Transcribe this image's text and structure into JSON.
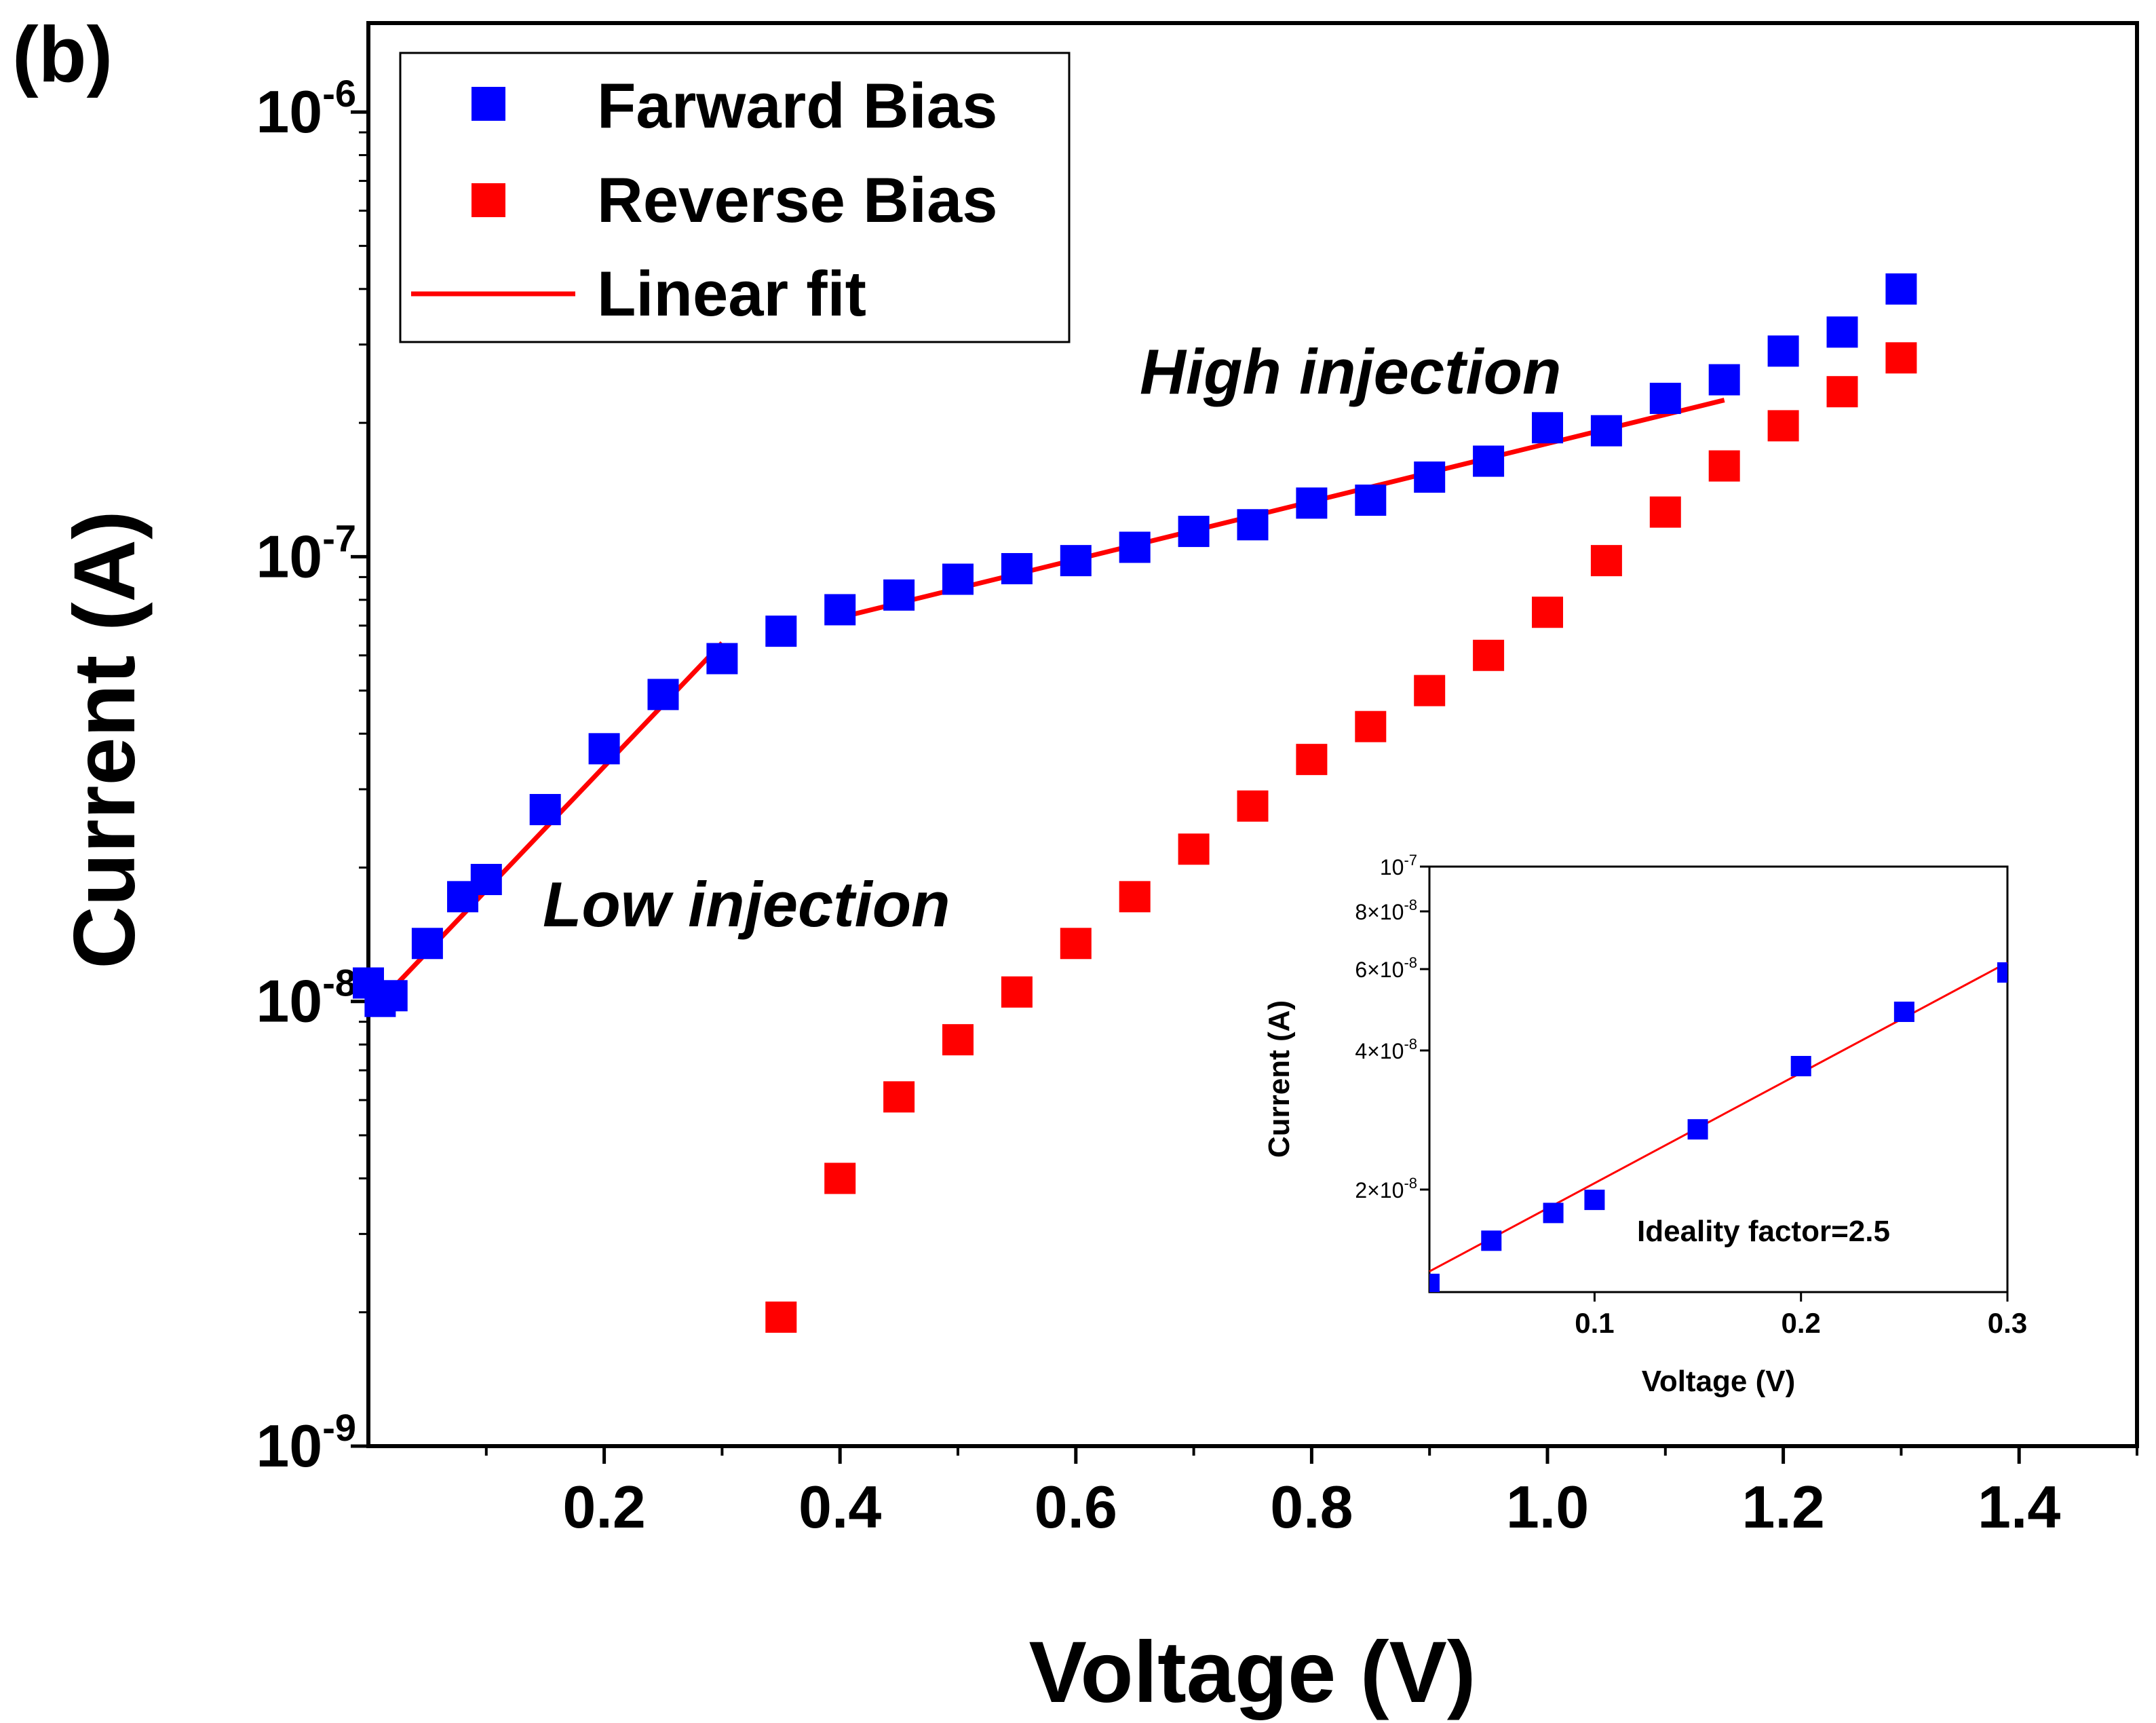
{
  "chart_data": {
    "panel_label": "(b)",
    "type": "scatter",
    "xlabel": "Voltage (V)",
    "ylabel": "Current (A)",
    "xlim": [
      0,
      1.5
    ],
    "ylim_log10": [
      -9,
      -5.8
    ],
    "yscale": "log",
    "xticks": [
      {
        "v": 0.2,
        "label": "0.2"
      },
      {
        "v": 0.4,
        "label": "0.4"
      },
      {
        "v": 0.6,
        "label": "0.6"
      },
      {
        "v": 0.8,
        "label": "0.8"
      },
      {
        "v": 1.0,
        "label": "1.0"
      },
      {
        "v": 1.2,
        "label": "1.2"
      },
      {
        "v": 1.4,
        "label": "1.4"
      }
    ],
    "yticks": [
      {
        "e": -9,
        "base": "10",
        "exp": "-9"
      },
      {
        "e": -8,
        "base": "10",
        "exp": "-8"
      },
      {
        "e": -7,
        "base": "10",
        "exp": "-7"
      },
      {
        "e": -6,
        "base": "10",
        "exp": "-6"
      }
    ],
    "legend": {
      "placement": "top-left",
      "entries": [
        {
          "label": "Farward Bias",
          "kind": "square",
          "color": "#0000ff"
        },
        {
          "label": "Reverse Bias",
          "kind": "square",
          "color": "#ff0000"
        },
        {
          "label": "Linear fit",
          "kind": "line",
          "color": "#ff0000"
        }
      ]
    },
    "series": [
      {
        "name": "Farward Bias",
        "color": "#0000ff",
        "points": [
          [
            0.0,
            1.1e-08
          ],
          [
            0.01,
            1e-08
          ],
          [
            0.02,
            1.03e-08
          ],
          [
            0.05,
            1.35e-08
          ],
          [
            0.08,
            1.72e-08
          ],
          [
            0.1,
            1.88e-08
          ],
          [
            0.15,
            2.7e-08
          ],
          [
            0.2,
            3.7e-08
          ],
          [
            0.25,
            4.9e-08
          ],
          [
            0.3,
            5.9e-08
          ],
          [
            0.35,
            6.8e-08
          ],
          [
            0.4,
            7.6e-08
          ],
          [
            0.45,
            8.2e-08
          ],
          [
            0.5,
            8.9e-08
          ],
          [
            0.55,
            9.4e-08
          ],
          [
            0.6,
            9.8e-08
          ],
          [
            0.65,
            1.05e-07
          ],
          [
            0.7,
            1.14e-07
          ],
          [
            0.75,
            1.18e-07
          ],
          [
            0.8,
            1.32e-07
          ],
          [
            0.85,
            1.34e-07
          ],
          [
            0.9,
            1.51e-07
          ],
          [
            0.95,
            1.64e-07
          ],
          [
            1.0,
            1.95e-07
          ],
          [
            1.05,
            1.92e-07
          ],
          [
            1.1,
            2.27e-07
          ],
          [
            1.15,
            2.5e-07
          ],
          [
            1.2,
            2.9e-07
          ],
          [
            1.25,
            3.2e-07
          ],
          [
            1.3,
            4e-07
          ]
        ]
      },
      {
        "name": "Reverse Bias",
        "color": "#ff0000",
        "points": [
          [
            0.35,
            1.95e-09
          ],
          [
            0.4,
            4e-09
          ],
          [
            0.45,
            6.1e-09
          ],
          [
            0.5,
            8.2e-09
          ],
          [
            0.55,
            1.05e-08
          ],
          [
            0.6,
            1.35e-08
          ],
          [
            0.65,
            1.72e-08
          ],
          [
            0.7,
            2.2e-08
          ],
          [
            0.75,
            2.75e-08
          ],
          [
            0.8,
            3.5e-08
          ],
          [
            0.85,
            4.15e-08
          ],
          [
            0.9,
            5e-08
          ],
          [
            0.95,
            6e-08
          ],
          [
            1.0,
            7.5e-08
          ],
          [
            1.05,
            9.8e-08
          ],
          [
            1.1,
            1.26e-07
          ],
          [
            1.15,
            1.6e-07
          ],
          [
            1.2,
            1.97e-07
          ],
          [
            1.25,
            2.35e-07
          ],
          [
            1.3,
            2.8e-07
          ]
        ]
      }
    ],
    "fits": [
      {
        "name": "Linear fit (low injection)",
        "x": [
          0.01,
          0.3
        ],
        "y": [
          1e-08,
          6.4e-08
        ],
        "color": "#ff0000"
      },
      {
        "name": "Linear fit (high injection)",
        "x": [
          0.4,
          1.15
        ],
        "y": [
          7.3e-08,
          2.25e-07
        ],
        "color": "#ff0000"
      }
    ],
    "annotations": [
      {
        "text": "High injection",
        "x": 0.86,
        "y": 2.6e-07
      },
      {
        "text": "Low injection",
        "x": 0.16,
        "y": 1.7e-08
      }
    ],
    "inset": {
      "type": "scatter",
      "xlabel": "Voltage (V)",
      "ylabel": "Current (A)",
      "xlim": [
        0.02,
        0.3
      ],
      "ylim": [
        1.2e-08,
        1e-07
      ],
      "yscale": "log",
      "xticks": [
        {
          "v": 0.1,
          "label": "0.1"
        },
        {
          "v": 0.2,
          "label": "0.2"
        },
        {
          "v": 0.3,
          "label": "0.3"
        }
      ],
      "yticks": [
        {
          "v": 2e-08,
          "mant": "2×10",
          "exp": "-8"
        },
        {
          "v": 4e-08,
          "mant": "4×10",
          "exp": "-8"
        },
        {
          "v": 6e-08,
          "mant": "6×10",
          "exp": "-8"
        },
        {
          "v": 8e-08,
          "mant": "8×10",
          "exp": "-8"
        },
        {
          "v": 1e-07,
          "mant": "10",
          "exp": "-7"
        }
      ],
      "annotation": "Ideality factor=2.5",
      "points": [
        [
          0.02,
          1.25e-08
        ],
        [
          0.05,
          1.55e-08
        ],
        [
          0.08,
          1.78e-08
        ],
        [
          0.1,
          1.9e-08
        ],
        [
          0.15,
          2.7e-08
        ],
        [
          0.2,
          3.7e-08
        ],
        [
          0.25,
          4.85e-08
        ],
        [
          0.3,
          5.9e-08
        ]
      ],
      "fit": {
        "x": [
          0.02,
          0.3
        ],
        "y": [
          1.33e-08,
          6.2e-08
        ]
      }
    }
  }
}
